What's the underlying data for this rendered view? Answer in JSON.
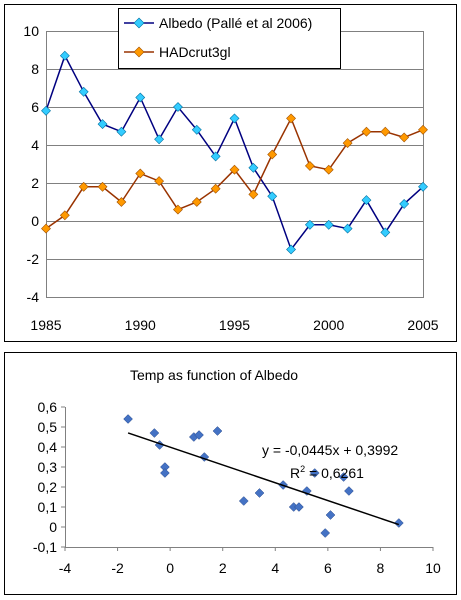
{
  "chart_data": [
    {
      "type": "line",
      "title": "",
      "xlabel": "",
      "ylabel": "",
      "xlim": [
        1985,
        2005
      ],
      "ylim": [
        -4,
        10
      ],
      "x_ticks": [
        "1985",
        "1990",
        "1995",
        "2000",
        "2005"
      ],
      "y_ticks": [
        "-4",
        "-2",
        "0",
        "2",
        "4",
        "6",
        "8",
        "10"
      ],
      "grid": true,
      "legend_position": "top-center",
      "x": [
        1985,
        1986,
        1987,
        1988,
        1989,
        1990,
        1991,
        1992,
        1993,
        1994,
        1995,
        1996,
        1997,
        1998,
        1999,
        2000,
        2001,
        2002,
        2003,
        2004,
        2005
      ],
      "series": [
        {
          "name": "Albedo (Pallé et al 2006)",
          "color": "#000080",
          "marker_color": "#33ccff",
          "marker": "diamond",
          "values": [
            5.8,
            8.7,
            6.8,
            5.1,
            4.7,
            6.5,
            4.3,
            6.0,
            4.8,
            3.4,
            5.4,
            2.8,
            1.3,
            -1.5,
            -0.2,
            -0.2,
            -0.4,
            1.1,
            -0.6,
            0.9,
            1.8
          ]
        },
        {
          "name": "HADcrut3gl",
          "color": "#993300",
          "marker_color": "#ff9900",
          "marker": "diamond",
          "values": [
            -0.4,
            0.3,
            1.8,
            1.8,
            1.0,
            2.5,
            2.1,
            0.6,
            1.0,
            1.7,
            2.7,
            1.4,
            3.5,
            5.4,
            2.9,
            2.7,
            4.1,
            4.7,
            4.7,
            4.4,
            4.8
          ]
        }
      ]
    },
    {
      "type": "scatter",
      "title": "Temp as function of Albedo",
      "xlabel": "",
      "ylabel": "",
      "xlim": [
        -4,
        10
      ],
      "ylim": [
        -0.1,
        0.6
      ],
      "x_ticks": [
        "-4",
        "-2",
        "0",
        "2",
        "4",
        "6",
        "8",
        "10"
      ],
      "y_ticks": [
        "-0,1",
        "0",
        "0,1",
        "0,2",
        "0,3",
        "0,4",
        "0,5",
        "0,6"
      ],
      "grid": false,
      "marker_color": "#4472c4",
      "trendline_color": "#000000",
      "equation": "y = -0,0445x + 0,3992",
      "r_squared_label": "R",
      "r_squared_exp": "2",
      "r_squared_value": " = 0,6261",
      "trend": {
        "slope": -0.0445,
        "intercept": 0.3992
      },
      "points": [
        {
          "x": -1.6,
          "y": 0.54
        },
        {
          "x": -0.6,
          "y": 0.47
        },
        {
          "x": -0.4,
          "y": 0.41
        },
        {
          "x": -0.2,
          "y": 0.3
        },
        {
          "x": -0.2,
          "y": 0.27
        },
        {
          "x": 0.9,
          "y": 0.45
        },
        {
          "x": 1.1,
          "y": 0.46
        },
        {
          "x": 1.3,
          "y": 0.35
        },
        {
          "x": 1.8,
          "y": 0.48
        },
        {
          "x": 2.8,
          "y": 0.13
        },
        {
          "x": 3.4,
          "y": 0.17
        },
        {
          "x": 4.3,
          "y": 0.21
        },
        {
          "x": 4.7,
          "y": 0.1
        },
        {
          "x": 4.9,
          "y": 0.1
        },
        {
          "x": 5.2,
          "y": 0.18
        },
        {
          "x": 5.5,
          "y": 0.27
        },
        {
          "x": 5.9,
          "y": -0.03
        },
        {
          "x": 6.1,
          "y": 0.06
        },
        {
          "x": 6.6,
          "y": 0.25
        },
        {
          "x": 6.8,
          "y": 0.18
        },
        {
          "x": 8.7,
          "y": 0.02
        }
      ]
    }
  ]
}
